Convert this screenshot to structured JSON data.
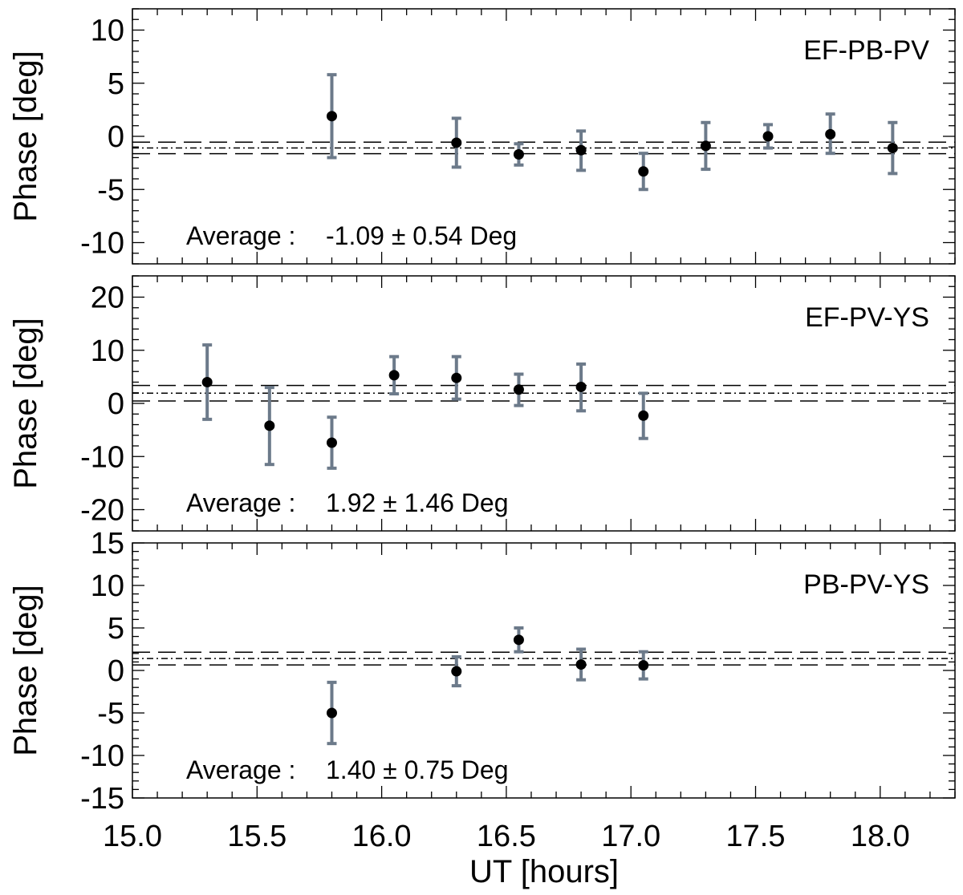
{
  "chart_data": {
    "type": "scatter",
    "xlabel": "UT [hours]",
    "xlim": [
      15.0,
      18.3
    ],
    "xticks": [
      15.0,
      15.5,
      16.0,
      16.5,
      17.0,
      17.5,
      18.0
    ],
    "xtick_labels": [
      "15.0",
      "15.5",
      "16.0",
      "16.5",
      "17.0",
      "17.5",
      "18.0"
    ],
    "colors": {
      "errorbar": "#6c7a8a",
      "marker": "#000000"
    },
    "panels": [
      {
        "title": "EF-PB-PV",
        "ylabel": "Phase [deg]",
        "ylim": [
          -12,
          12
        ],
        "yticks": [
          -10,
          -5,
          0,
          5,
          10
        ],
        "ytick_labels": [
          "-10",
          "-5",
          "0",
          "5",
          "10"
        ],
        "ymajor": 5,
        "yminor": 1,
        "average": {
          "label": "Average :",
          "value_text": "-1.09 ± 0.54 Deg",
          "mean": -1.09,
          "err": 0.54
        },
        "points": [
          {
            "x": 15.8,
            "y": 1.9,
            "lo": -2.0,
            "hi": 5.8
          },
          {
            "x": 16.3,
            "y": -0.6,
            "lo": -2.9,
            "hi": 1.7
          },
          {
            "x": 16.55,
            "y": -1.7,
            "lo": -2.7,
            "hi": -0.7
          },
          {
            "x": 16.8,
            "y": -1.3,
            "lo": -3.2,
            "hi": 0.5
          },
          {
            "x": 17.05,
            "y": -3.3,
            "lo": -5.0,
            "hi": -1.6
          },
          {
            "x": 17.3,
            "y": -0.9,
            "lo": -3.1,
            "hi": 1.3
          },
          {
            "x": 17.55,
            "y": 0.0,
            "lo": -1.1,
            "hi": 1.1
          },
          {
            "x": 17.8,
            "y": 0.2,
            "lo": -1.6,
            "hi": 2.1
          },
          {
            "x": 18.05,
            "y": -1.1,
            "lo": -3.5,
            "hi": 1.3
          }
        ]
      },
      {
        "title": "EF-PV-YS",
        "ylabel": "Phase [deg]",
        "ylim": [
          -24,
          24
        ],
        "yticks": [
          -20,
          -10,
          0,
          10,
          20
        ],
        "ytick_labels": [
          "-20",
          "-10",
          "0",
          "10",
          "20"
        ],
        "ymajor": 10,
        "yminor": 2,
        "average": {
          "label": "Average :",
          "value_text": "1.92 ± 1.46 Deg",
          "mean": 1.92,
          "err": 1.46
        },
        "points": [
          {
            "x": 15.3,
            "y": 4.0,
            "lo": -3.0,
            "hi": 11.0
          },
          {
            "x": 15.55,
            "y": -4.2,
            "lo": -11.5,
            "hi": 3.0
          },
          {
            "x": 15.8,
            "y": -7.4,
            "lo": -12.2,
            "hi": -2.6
          },
          {
            "x": 16.05,
            "y": 5.3,
            "lo": 1.8,
            "hi": 8.8
          },
          {
            "x": 16.3,
            "y": 4.8,
            "lo": 0.8,
            "hi": 8.8
          },
          {
            "x": 16.55,
            "y": 2.6,
            "lo": -0.4,
            "hi": 5.5
          },
          {
            "x": 16.8,
            "y": 3.1,
            "lo": -1.4,
            "hi": 7.4
          },
          {
            "x": 17.05,
            "y": -2.3,
            "lo": -6.6,
            "hi": 1.9
          }
        ]
      },
      {
        "title": "PB-PV-YS",
        "ylabel": "Phase [deg]",
        "ylim": [
          -15,
          15
        ],
        "yticks": [
          -15,
          -10,
          -5,
          0,
          5,
          10,
          15
        ],
        "ytick_labels": [
          "-15",
          "-10",
          "-5",
          "0",
          "5",
          "10",
          "15"
        ],
        "ymajor": 5,
        "yminor": 1,
        "average": {
          "label": "Average :",
          "value_text": "1.40 ± 0.75 Deg",
          "mean": 1.4,
          "err": 0.75
        },
        "points": [
          {
            "x": 15.8,
            "y": -5.0,
            "lo": -8.6,
            "hi": -1.4
          },
          {
            "x": 16.3,
            "y": -0.1,
            "lo": -1.8,
            "hi": 1.6
          },
          {
            "x": 16.55,
            "y": 3.6,
            "lo": 2.2,
            "hi": 5.0
          },
          {
            "x": 16.8,
            "y": 0.7,
            "lo": -1.1,
            "hi": 2.5
          },
          {
            "x": 17.05,
            "y": 0.6,
            "lo": -1.0,
            "hi": 2.2
          }
        ]
      }
    ]
  }
}
